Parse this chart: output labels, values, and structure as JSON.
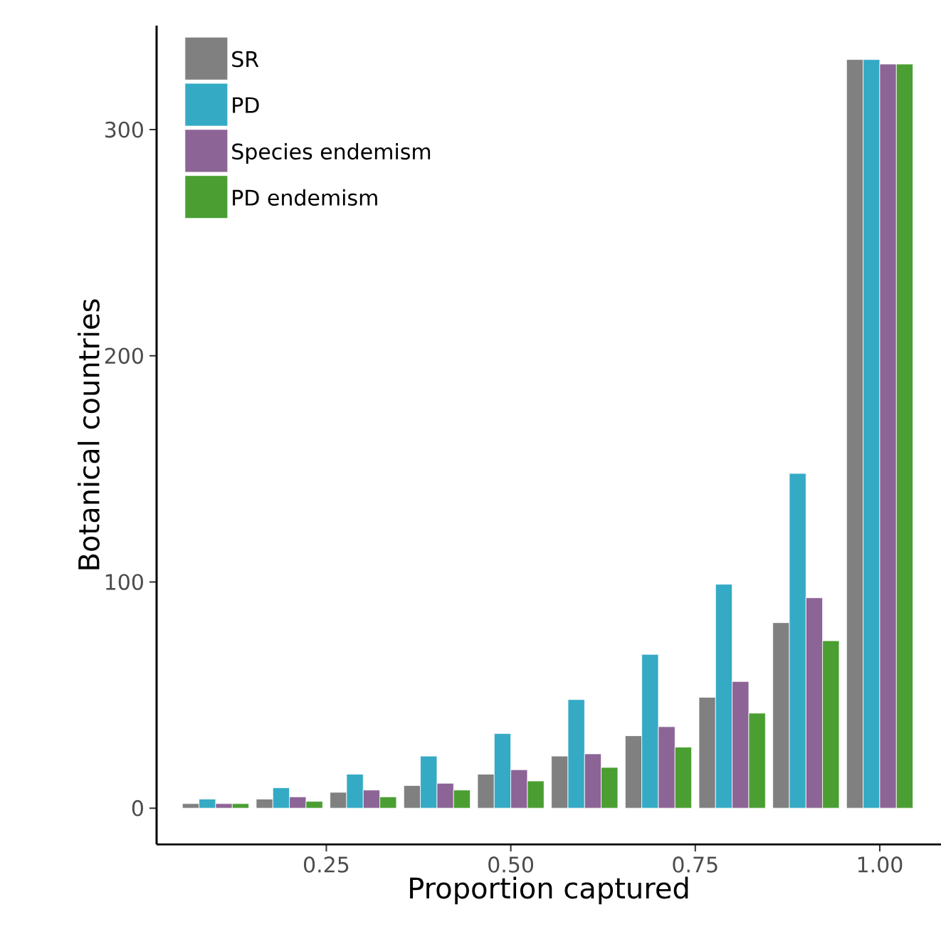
{
  "chart_data": {
    "type": "bar",
    "xlabel": "Proportion captured",
    "ylabel": "Botanical countries",
    "x": [
      0.1,
      0.2,
      0.3,
      0.4,
      0.5,
      0.6,
      0.7,
      0.8,
      0.9,
      1.0
    ],
    "series": [
      {
        "name": "SR",
        "color": "#808080",
        "values": [
          2,
          4,
          7,
          10,
          15,
          23,
          32,
          49,
          82,
          331
        ]
      },
      {
        "name": "PD",
        "color": "#35aac5",
        "values": [
          4,
          9,
          15,
          23,
          33,
          48,
          68,
          99,
          148,
          331
        ]
      },
      {
        "name": "Species endemism",
        "color": "#8c6496",
        "values": [
          2,
          5,
          8,
          11,
          17,
          24,
          36,
          56,
          93,
          329
        ]
      },
      {
        "name": "PD endemism",
        "color": "#4a9e32",
        "values": [
          2,
          3,
          5,
          8,
          12,
          18,
          27,
          42,
          74,
          329
        ]
      }
    ],
    "xlim": [
      0.02,
      1.083
    ],
    "ylim": [
      -16,
      346
    ],
    "xticks": [
      {
        "value": 0.25,
        "label": "0.25"
      },
      {
        "value": 0.5,
        "label": "0.50"
      },
      {
        "value": 0.75,
        "label": "0.75"
      },
      {
        "value": 1.0,
        "label": "1.00"
      }
    ],
    "yticks": [
      0,
      100,
      200,
      300
    ],
    "grid": false,
    "legend": "top left"
  }
}
